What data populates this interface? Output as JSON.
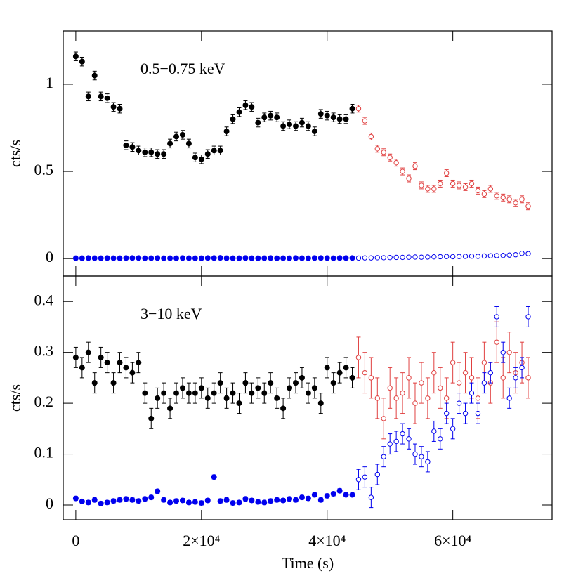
{
  "chart_data": [
    {
      "type": "scatter",
      "annotation": "0.5−0.75 keV",
      "ylabel": "cts/s",
      "xlim": [
        -2000,
        75800
      ],
      "ylim": [
        -0.1,
        1.306
      ],
      "yticks": [
        0,
        0.5,
        1
      ],
      "series": [
        {
          "color": "#000000",
          "marker": "filled",
          "error": 0.025,
          "x": [
            0,
            1000,
            2000,
            3000,
            4000,
            5000,
            6000,
            7000,
            8000,
            9000,
            10000,
            11000,
            12000,
            13000,
            14000,
            15000,
            16000,
            17000,
            18000,
            19000,
            20000,
            21000,
            22000,
            23000,
            24000,
            25000,
            26000,
            27000,
            28000,
            29000,
            30000,
            31000,
            32000,
            33000,
            34000,
            35000,
            36000,
            37000,
            38000,
            39000,
            40000,
            41000,
            42000,
            43000,
            44000
          ],
          "values": [
            1.16,
            1.13,
            0.93,
            1.05,
            0.93,
            0.92,
            0.87,
            0.86,
            0.65,
            0.64,
            0.62,
            0.61,
            0.61,
            0.6,
            0.6,
            0.66,
            0.7,
            0.71,
            0.66,
            0.58,
            0.57,
            0.6,
            0.62,
            0.62,
            0.73,
            0.8,
            0.84,
            0.88,
            0.87,
            0.78,
            0.81,
            0.82,
            0.81,
            0.76,
            0.77,
            0.76,
            0.78,
            0.76,
            0.73,
            0.83,
            0.82,
            0.81,
            0.8,
            0.8,
            0.86
          ]
        },
        {
          "color": "#e04040",
          "marker": "open",
          "error": 0.02,
          "x": [
            45000,
            46000,
            47000,
            48000,
            49000,
            50000,
            51000,
            52000,
            53000,
            54000,
            55000,
            56000,
            57000,
            58000,
            59000,
            60000,
            61000,
            62000,
            63000,
            64000,
            65000,
            66000,
            67000,
            68000,
            69000,
            70000,
            71000,
            72000
          ],
          "values": [
            0.86,
            0.79,
            0.7,
            0.63,
            0.61,
            0.58,
            0.55,
            0.5,
            0.46,
            0.53,
            0.42,
            0.4,
            0.4,
            0.43,
            0.49,
            0.43,
            0.42,
            0.41,
            0.43,
            0.39,
            0.37,
            0.4,
            0.36,
            0.35,
            0.34,
            0.32,
            0.34,
            0.3
          ]
        },
        {
          "color": "#0000ee",
          "marker": "filled",
          "error": 0.004,
          "x": [
            0,
            1000,
            2000,
            3000,
            4000,
            5000,
            6000,
            7000,
            8000,
            9000,
            10000,
            11000,
            12000,
            13000,
            14000,
            15000,
            16000,
            17000,
            18000,
            19000,
            20000,
            21000,
            22000,
            23000,
            24000,
            25000,
            26000,
            27000,
            28000,
            29000,
            30000,
            31000,
            32000,
            33000,
            34000,
            35000,
            36000,
            37000,
            38000,
            39000,
            40000,
            41000,
            42000,
            43000,
            44000
          ],
          "values": [
            0.002,
            0.002,
            0.003,
            0.002,
            0.002,
            0.003,
            0.002,
            0.002,
            0.003,
            0.003,
            0.003,
            0.002,
            0.002,
            0.003,
            0.002,
            0.002,
            0.002,
            0.003,
            0.002,
            0.002,
            0.002,
            0.003,
            0.003,
            0.004,
            0.002,
            0.002,
            0.002,
            0.003,
            0.002,
            0.002,
            0.002,
            0.003,
            0.002,
            0.002,
            0.002,
            0.003,
            0.002,
            0.002,
            0.003,
            0.003,
            0.003,
            0.002,
            0.003,
            0.003,
            0.003
          ]
        },
        {
          "color": "#0000ee",
          "marker": "open",
          "error": 0.005,
          "x": [
            45000,
            46000,
            47000,
            48000,
            49000,
            50000,
            51000,
            52000,
            53000,
            54000,
            55000,
            56000,
            57000,
            58000,
            59000,
            60000,
            61000,
            62000,
            63000,
            64000,
            65000,
            66000,
            67000,
            68000,
            69000,
            70000,
            71000,
            72000
          ],
          "values": [
            0.003,
            0.004,
            0.004,
            0.005,
            0.005,
            0.006,
            0.007,
            0.007,
            0.008,
            0.009,
            0.008,
            0.009,
            0.01,
            0.011,
            0.012,
            0.011,
            0.012,
            0.013,
            0.014,
            0.013,
            0.015,
            0.016,
            0.017,
            0.018,
            0.02,
            0.022,
            0.03,
            0.028
          ]
        }
      ]
    },
    {
      "type": "scatter",
      "annotation": "3−10 keV",
      "ylabel": "cts/s",
      "xlabel": "Time (s)",
      "xlim": [
        -2000,
        75800
      ],
      "ylim": [
        -0.029,
        0.45
      ],
      "yticks": [
        0,
        0.1,
        0.2,
        0.3,
        0.4
      ],
      "xticks": [
        0,
        {
          "value": 20000,
          "label": "2×10⁴"
        },
        {
          "value": 40000,
          "label": "4×10⁴"
        },
        {
          "value": 60000,
          "label": "6×10⁴"
        }
      ],
      "series": [
        {
          "color": "#000000",
          "marker": "filled",
          "error": 0.02,
          "x": [
            0,
            1000,
            2000,
            3000,
            4000,
            5000,
            6000,
            7000,
            8000,
            9000,
            10000,
            11000,
            12000,
            13000,
            14000,
            15000,
            16000,
            17000,
            18000,
            19000,
            20000,
            21000,
            22000,
            23000,
            24000,
            25000,
            26000,
            27000,
            28000,
            29000,
            30000,
            31000,
            32000,
            33000,
            34000,
            35000,
            36000,
            37000,
            38000,
            39000,
            40000,
            41000,
            42000,
            43000,
            44000
          ],
          "values": [
            0.29,
            0.27,
            0.3,
            0.24,
            0.29,
            0.28,
            0.24,
            0.28,
            0.27,
            0.26,
            0.28,
            0.22,
            0.17,
            0.21,
            0.22,
            0.19,
            0.22,
            0.23,
            0.22,
            0.22,
            0.23,
            0.21,
            0.22,
            0.24,
            0.21,
            0.22,
            0.2,
            0.24,
            0.22,
            0.23,
            0.22,
            0.24,
            0.21,
            0.19,
            0.23,
            0.24,
            0.25,
            0.22,
            0.23,
            0.2,
            0.27,
            0.24,
            0.26,
            0.27,
            0.25
          ]
        },
        {
          "color": "#e04040",
          "marker": "open",
          "error": 0.04,
          "x": [
            45000,
            46000,
            47000,
            48000,
            49000,
            50000,
            51000,
            52000,
            53000,
            54000,
            55000,
            56000,
            57000,
            58000,
            59000,
            60000,
            61000,
            62000,
            63000,
            64000,
            65000,
            66000,
            67000,
            68000,
            69000,
            70000,
            71000,
            72000
          ],
          "values": [
            0.29,
            0.26,
            0.25,
            0.21,
            0.17,
            0.23,
            0.21,
            0.22,
            0.25,
            0.2,
            0.24,
            0.21,
            0.26,
            0.23,
            0.21,
            0.28,
            0.24,
            0.26,
            0.25,
            0.21,
            0.28,
            0.24,
            0.32,
            0.25,
            0.3,
            0.26,
            0.28,
            0.25
          ]
        },
        {
          "color": "#0000ee",
          "marker": "filled",
          "error": 0.004,
          "x": [
            0,
            1000,
            2000,
            3000,
            4000,
            5000,
            6000,
            7000,
            8000,
            9000,
            10000,
            11000,
            12000,
            13000,
            14000,
            15000,
            16000,
            17000,
            18000,
            19000,
            20000,
            21000,
            22000,
            23000,
            24000,
            25000,
            26000,
            27000,
            28000,
            29000,
            30000,
            31000,
            32000,
            33000,
            34000,
            35000,
            36000,
            37000,
            38000,
            39000,
            40000,
            41000,
            42000,
            43000,
            44000
          ],
          "values": [
            0.013,
            0.007,
            0.005,
            0.01,
            0.003,
            0.005,
            0.008,
            0.01,
            0.012,
            0.01,
            0.008,
            0.012,
            0.015,
            0.027,
            0.01,
            0.005,
            0.008,
            0.009,
            0.005,
            0.006,
            0.004,
            0.009,
            0.055,
            0.008,
            0.01,
            0.004,
            0.005,
            0.012,
            0.009,
            0.006,
            0.005,
            0.008,
            0.01,
            0.009,
            0.012,
            0.01,
            0.015,
            0.013,
            0.02,
            0.01,
            0.018,
            0.022,
            0.028,
            0.02,
            0.02
          ]
        },
        {
          "color": "#0000ee",
          "marker": "open",
          "error": 0.02,
          "x": [
            45000,
            46000,
            47000,
            48000,
            49000,
            50000,
            51000,
            52000,
            53000,
            54000,
            55000,
            56000,
            57000,
            58000,
            59000,
            60000,
            61000,
            62000,
            63000,
            64000,
            65000,
            66000,
            67000,
            68000,
            69000,
            70000,
            71000,
            72000
          ],
          "values": [
            0.05,
            0.055,
            0.015,
            0.06,
            0.095,
            0.12,
            0.125,
            0.14,
            0.13,
            0.1,
            0.095,
            0.085,
            0.145,
            0.13,
            0.18,
            0.15,
            0.2,
            0.18,
            0.22,
            0.18,
            0.24,
            0.26,
            0.37,
            0.3,
            0.21,
            0.25,
            0.27,
            0.37
          ]
        }
      ]
    }
  ]
}
